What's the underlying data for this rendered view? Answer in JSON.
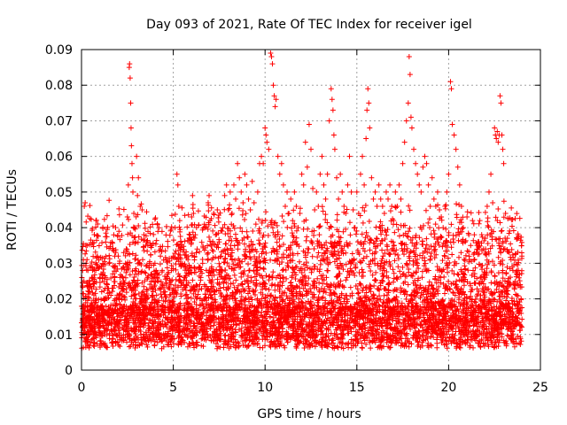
{
  "chart_data": {
    "type": "scatter",
    "title": "Day 093 of 2021, Rate Of TEC Index for receiver igel",
    "xlabel": "GPS time / hours",
    "ylabel": "ROTI / TECUs",
    "xlim": [
      0,
      25
    ],
    "ylim": [
      0,
      0.09
    ],
    "x_ticks": [
      {
        "value": 0,
        "label": "0"
      },
      {
        "value": 5,
        "label": "5"
      },
      {
        "value": 10,
        "label": "10"
      },
      {
        "value": 15,
        "label": "15"
      },
      {
        "value": 20,
        "label": "20"
      },
      {
        "value": 25,
        "label": "25"
      }
    ],
    "y_ticks": [
      {
        "value": 0,
        "label": "0"
      },
      {
        "value": 0.01,
        "label": "0.01"
      },
      {
        "value": 0.02,
        "label": "0.02"
      },
      {
        "value": 0.03,
        "label": "0.03"
      },
      {
        "value": 0.04,
        "label": "0.04"
      },
      {
        "value": 0.05,
        "label": "0.05"
      },
      {
        "value": 0.06,
        "label": "0.06"
      },
      {
        "value": 0.07,
        "label": "0.07"
      },
      {
        "value": 0.08,
        "label": "0.08"
      },
      {
        "value": 0.09,
        "label": "0.09"
      }
    ],
    "grid": true,
    "marker": "+",
    "color": "#ff0000",
    "series": [
      {
        "points": [
          [
            0.05,
            0.012
          ],
          [
            0.1,
            0.018
          ],
          [
            0.15,
            0.046
          ],
          [
            0.2,
            0.047
          ],
          [
            0.25,
            0.03
          ],
          [
            0.3,
            0.031
          ],
          [
            0.35,
            0.028
          ],
          [
            0.4,
            0.022
          ],
          [
            0.5,
            0.015
          ],
          [
            0.6,
            0.028
          ],
          [
            0.7,
            0.025
          ],
          [
            0.8,
            0.019
          ],
          [
            0.9,
            0.016
          ],
          [
            1.0,
            0.026
          ],
          [
            1.1,
            0.022
          ],
          [
            1.2,
            0.017
          ],
          [
            1.3,
            0.026
          ],
          [
            1.4,
            0.024
          ],
          [
            1.5,
            0.03
          ],
          [
            1.6,
            0.021
          ],
          [
            1.7,
            0.027
          ],
          [
            1.8,
            0.026
          ],
          [
            1.9,
            0.02
          ],
          [
            2.0,
            0.032
          ],
          [
            2.1,
            0.026
          ],
          [
            2.2,
            0.023
          ],
          [
            2.3,
            0.033
          ],
          [
            2.4,
            0.03
          ],
          [
            2.5,
            0.043
          ],
          [
            2.55,
            0.052
          ],
          [
            2.6,
            0.085
          ],
          [
            2.62,
            0.086
          ],
          [
            2.65,
            0.082
          ],
          [
            2.68,
            0.075
          ],
          [
            2.7,
            0.068
          ],
          [
            2.72,
            0.063
          ],
          [
            2.75,
            0.058
          ],
          [
            2.78,
            0.054
          ],
          [
            2.8,
            0.05
          ],
          [
            2.85,
            0.044
          ],
          [
            2.9,
            0.04
          ],
          [
            2.95,
            0.036
          ],
          [
            3.0,
            0.06
          ],
          [
            3.05,
            0.049
          ],
          [
            3.1,
            0.054
          ],
          [
            3.2,
            0.046
          ],
          [
            3.3,
            0.045
          ],
          [
            3.4,
            0.038
          ],
          [
            3.5,
            0.035
          ],
          [
            3.6,
            0.026
          ],
          [
            3.7,
            0.03
          ],
          [
            3.8,
            0.025
          ],
          [
            3.9,
            0.022
          ],
          [
            4.0,
            0.03
          ],
          [
            4.1,
            0.027
          ],
          [
            4.2,
            0.025
          ],
          [
            4.3,
            0.032
          ],
          [
            4.4,
            0.028
          ],
          [
            4.5,
            0.022
          ],
          [
            4.6,
            0.031
          ],
          [
            4.7,
            0.027
          ],
          [
            4.8,
            0.023
          ],
          [
            4.9,
            0.028
          ],
          [
            5.0,
            0.032
          ],
          [
            5.1,
            0.04
          ],
          [
            5.2,
            0.055
          ],
          [
            5.25,
            0.052
          ],
          [
            5.3,
            0.046
          ],
          [
            5.35,
            0.042
          ],
          [
            5.4,
            0.036
          ],
          [
            5.5,
            0.03
          ],
          [
            5.6,
            0.026
          ],
          [
            5.7,
            0.024
          ],
          [
            5.8,
            0.031
          ],
          [
            5.9,
            0.028
          ],
          [
            6.0,
            0.043
          ],
          [
            6.05,
            0.049
          ],
          [
            6.1,
            0.044
          ],
          [
            6.2,
            0.038
          ],
          [
            6.3,
            0.034
          ],
          [
            6.4,
            0.029
          ],
          [
            6.5,
            0.026
          ],
          [
            6.6,
            0.03
          ],
          [
            6.7,
            0.024
          ],
          [
            6.8,
            0.028
          ],
          [
            6.9,
            0.047
          ],
          [
            6.95,
            0.049
          ],
          [
            7.0,
            0.042
          ],
          [
            7.1,
            0.031
          ],
          [
            7.2,
            0.044
          ],
          [
            7.3,
            0.038
          ],
          [
            7.4,
            0.045
          ],
          [
            7.5,
            0.036
          ],
          [
            7.6,
            0.032
          ],
          [
            7.7,
            0.04
          ],
          [
            7.8,
            0.049
          ],
          [
            7.9,
            0.052
          ],
          [
            8.0,
            0.045
          ],
          [
            8.1,
            0.05
          ],
          [
            8.2,
            0.044
          ],
          [
            8.3,
            0.052
          ],
          [
            8.4,
            0.048
          ],
          [
            8.5,
            0.058
          ],
          [
            8.6,
            0.054
          ],
          [
            8.7,
            0.05
          ],
          [
            8.8,
            0.047
          ],
          [
            8.9,
            0.055
          ],
          [
            9.0,
            0.052
          ],
          [
            9.1,
            0.048
          ],
          [
            9.2,
            0.045
          ],
          [
            9.3,
            0.053
          ],
          [
            9.4,
            0.047
          ],
          [
            9.5,
            0.041
          ],
          [
            9.6,
            0.05
          ],
          [
            9.7,
            0.058
          ],
          [
            9.8,
            0.06
          ],
          [
            9.9,
            0.058
          ],
          [
            10.0,
            0.068
          ],
          [
            10.05,
            0.066
          ],
          [
            10.1,
            0.064
          ],
          [
            10.2,
            0.062
          ],
          [
            10.3,
            0.089
          ],
          [
            10.35,
            0.088
          ],
          [
            10.4,
            0.086
          ],
          [
            10.45,
            0.08
          ],
          [
            10.5,
            0.077
          ],
          [
            10.55,
            0.074
          ],
          [
            10.6,
            0.076
          ],
          [
            10.7,
            0.06
          ],
          [
            10.8,
            0.055
          ],
          [
            10.9,
            0.058
          ],
          [
            11.0,
            0.052
          ],
          [
            11.1,
            0.046
          ],
          [
            11.2,
            0.05
          ],
          [
            11.3,
            0.044
          ],
          [
            11.4,
            0.048
          ],
          [
            11.5,
            0.042
          ],
          [
            11.6,
            0.05
          ],
          [
            11.7,
            0.046
          ],
          [
            11.8,
            0.04
          ],
          [
            11.9,
            0.044
          ],
          [
            12.0,
            0.055
          ],
          [
            12.1,
            0.052
          ],
          [
            12.2,
            0.064
          ],
          [
            12.3,
            0.057
          ],
          [
            12.4,
            0.069
          ],
          [
            12.5,
            0.062
          ],
          [
            12.6,
            0.051
          ],
          [
            12.7,
            0.045
          ],
          [
            12.8,
            0.05
          ],
          [
            12.9,
            0.046
          ],
          [
            13.0,
            0.055
          ],
          [
            13.1,
            0.06
          ],
          [
            13.2,
            0.052
          ],
          [
            13.3,
            0.048
          ],
          [
            13.4,
            0.055
          ],
          [
            13.5,
            0.07
          ],
          [
            13.6,
            0.079
          ],
          [
            13.65,
            0.076
          ],
          [
            13.7,
            0.073
          ],
          [
            13.75,
            0.066
          ],
          [
            13.8,
            0.062
          ],
          [
            13.9,
            0.054
          ],
          [
            14.0,
            0.048
          ],
          [
            14.1,
            0.055
          ],
          [
            14.2,
            0.05
          ],
          [
            14.3,
            0.046
          ],
          [
            14.4,
            0.044
          ],
          [
            14.5,
            0.052
          ],
          [
            14.6,
            0.06
          ],
          [
            14.7,
            0.05
          ],
          [
            14.8,
            0.045
          ],
          [
            14.9,
            0.04
          ],
          [
            15.0,
            0.05
          ],
          [
            15.1,
            0.044
          ],
          [
            15.2,
            0.055
          ],
          [
            15.3,
            0.06
          ],
          [
            15.4,
            0.052
          ],
          [
            15.5,
            0.065
          ],
          [
            15.55,
            0.073
          ],
          [
            15.6,
            0.079
          ],
          [
            15.65,
            0.075
          ],
          [
            15.7,
            0.068
          ],
          [
            15.8,
            0.054
          ],
          [
            15.9,
            0.048
          ],
          [
            16.0,
            0.05
          ],
          [
            16.1,
            0.046
          ],
          [
            16.2,
            0.052
          ],
          [
            16.3,
            0.048
          ],
          [
            16.4,
            0.046
          ],
          [
            16.5,
            0.044
          ],
          [
            16.6,
            0.05
          ],
          [
            16.7,
            0.048
          ],
          [
            16.8,
            0.052
          ],
          [
            16.9,
            0.046
          ],
          [
            17.0,
            0.042
          ],
          [
            17.1,
            0.05
          ],
          [
            17.2,
            0.046
          ],
          [
            17.3,
            0.052
          ],
          [
            17.4,
            0.048
          ],
          [
            17.5,
            0.058
          ],
          [
            17.6,
            0.064
          ],
          [
            17.7,
            0.07
          ],
          [
            17.8,
            0.075
          ],
          [
            17.85,
            0.088
          ],
          [
            17.9,
            0.083
          ],
          [
            17.95,
            0.071
          ],
          [
            18.0,
            0.068
          ],
          [
            18.1,
            0.062
          ],
          [
            18.2,
            0.058
          ],
          [
            18.3,
            0.055
          ],
          [
            18.4,
            0.052
          ],
          [
            18.5,
            0.05
          ],
          [
            18.6,
            0.057
          ],
          [
            18.7,
            0.06
          ],
          [
            18.8,
            0.058
          ],
          [
            18.9,
            0.052
          ],
          [
            19.0,
            0.046
          ],
          [
            19.1,
            0.054
          ],
          [
            19.2,
            0.048
          ],
          [
            19.3,
            0.046
          ],
          [
            19.4,
            0.05
          ],
          [
            19.5,
            0.045
          ],
          [
            19.6,
            0.043
          ],
          [
            19.7,
            0.04
          ],
          [
            19.8,
            0.046
          ],
          [
            19.9,
            0.05
          ],
          [
            20.0,
            0.055
          ],
          [
            20.1,
            0.081
          ],
          [
            20.15,
            0.079
          ],
          [
            20.2,
            0.069
          ],
          [
            20.3,
            0.066
          ],
          [
            20.4,
            0.062
          ],
          [
            20.5,
            0.057
          ],
          [
            20.6,
            0.052
          ],
          [
            20.7,
            0.046
          ],
          [
            20.8,
            0.04
          ],
          [
            20.9,
            0.036
          ],
          [
            21.0,
            0.043
          ],
          [
            21.1,
            0.038
          ],
          [
            21.2,
            0.035
          ],
          [
            21.3,
            0.042
          ],
          [
            21.4,
            0.038
          ],
          [
            21.5,
            0.033
          ],
          [
            21.6,
            0.036
          ],
          [
            21.7,
            0.042
          ],
          [
            21.8,
            0.038
          ],
          [
            21.9,
            0.034
          ],
          [
            22.0,
            0.037
          ],
          [
            22.1,
            0.046
          ],
          [
            22.2,
            0.05
          ],
          [
            22.3,
            0.055
          ],
          [
            22.4,
            0.047
          ],
          [
            22.5,
            0.068
          ],
          [
            22.55,
            0.066
          ],
          [
            22.6,
            0.065
          ],
          [
            22.65,
            0.067
          ],
          [
            22.7,
            0.064
          ],
          [
            22.75,
            0.066
          ],
          [
            22.8,
            0.077
          ],
          [
            22.85,
            0.075
          ],
          [
            22.9,
            0.066
          ],
          [
            22.95,
            0.062
          ],
          [
            23.0,
            0.058
          ],
          [
            23.1,
            0.044
          ],
          [
            23.2,
            0.037
          ],
          [
            23.3,
            0.033
          ],
          [
            23.4,
            0.031
          ],
          [
            23.5,
            0.028
          ],
          [
            23.6,
            0.024
          ],
          [
            23.7,
            0.027
          ],
          [
            23.8,
            0.028
          ],
          [
            23.9,
            0.024
          ],
          [
            23.95,
            0.02
          ]
        ]
      }
    ]
  }
}
